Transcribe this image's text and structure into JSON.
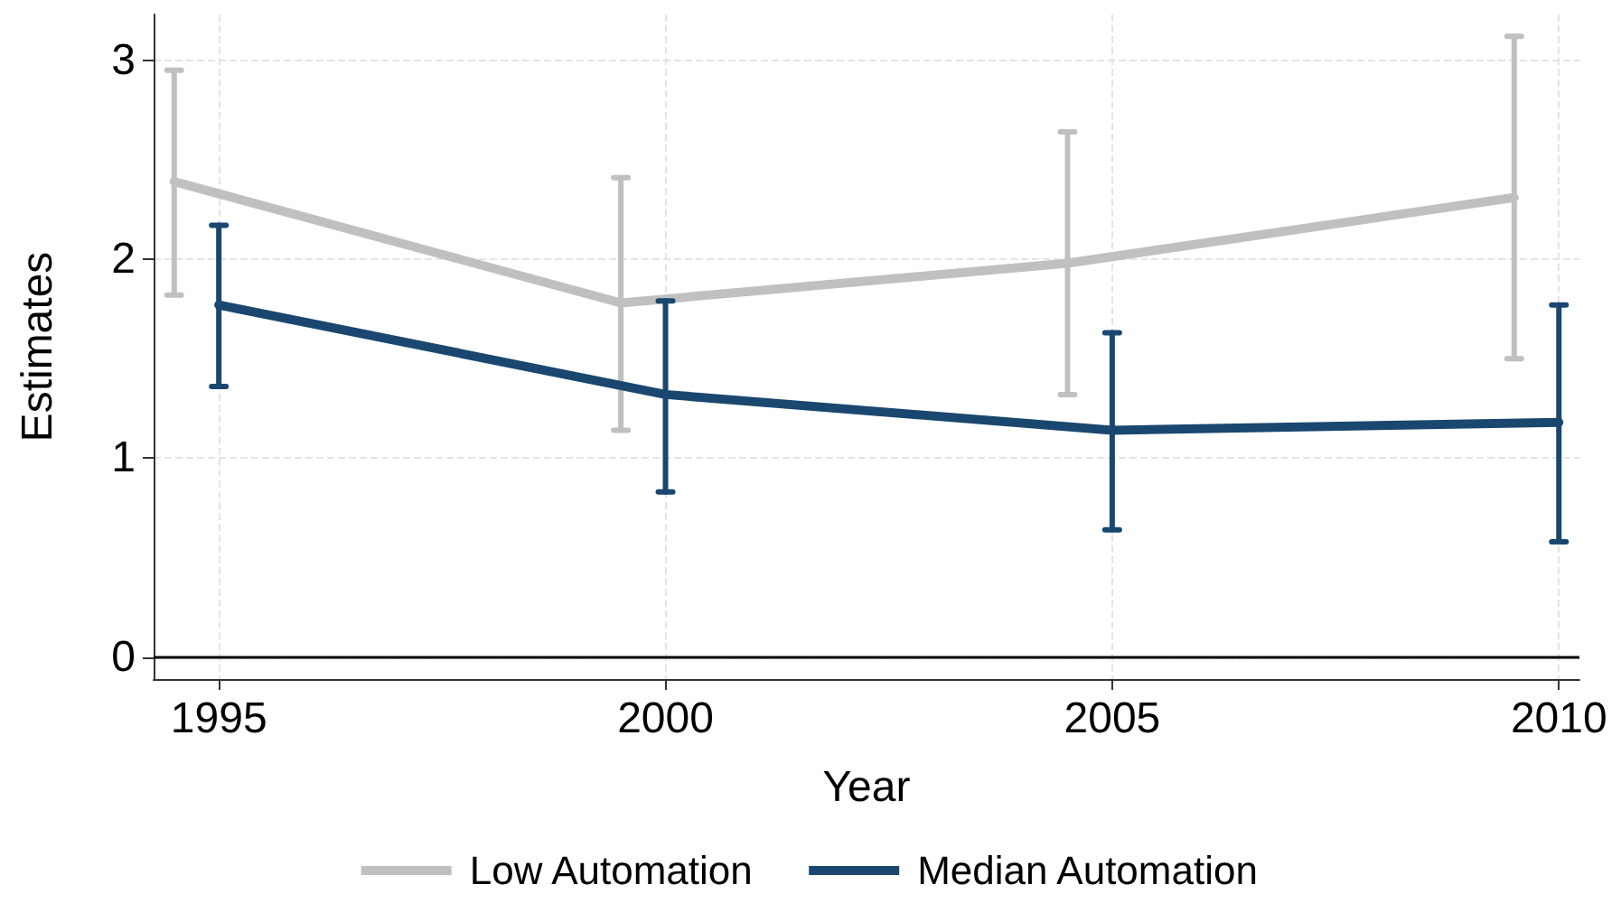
{
  "chart_data": {
    "type": "line",
    "xlabel": "Year",
    "ylabel": "Estimates",
    "xlim": [
      1994.27,
      2010.23
    ],
    "xticks": [
      1995,
      2000,
      2005,
      2010
    ],
    "ylim": [
      -0.11,
      3.23
    ],
    "yticks": [
      0,
      1,
      2,
      3
    ],
    "grid": true,
    "legend": "bottom",
    "marker": "none",
    "line_style": "solid",
    "ref_lines": [
      {
        "axis": "y",
        "value": 0,
        "color": "#000000"
      }
    ],
    "series": [
      {
        "name": "Low Automation",
        "color": "#c0c0c0",
        "x": [
          1994.5,
          1999.5,
          2004.5,
          2009.5
        ],
        "values": [
          2.39,
          1.78,
          1.98,
          2.31
        ],
        "errors": [
          [
            1.82,
            2.95
          ],
          [
            1.14,
            2.41
          ],
          [
            1.32,
            2.64
          ],
          [
            1.5,
            3.12
          ]
        ]
      },
      {
        "name": "Median Automation",
        "color": "#1a476f",
        "x": [
          1995,
          2000,
          2005,
          2010
        ],
        "values": [
          1.77,
          1.32,
          1.14,
          1.18
        ],
        "errors": [
          [
            1.36,
            2.17
          ],
          [
            0.83,
            1.79
          ],
          [
            0.64,
            1.63
          ],
          [
            0.58,
            1.77
          ]
        ]
      }
    ]
  }
}
